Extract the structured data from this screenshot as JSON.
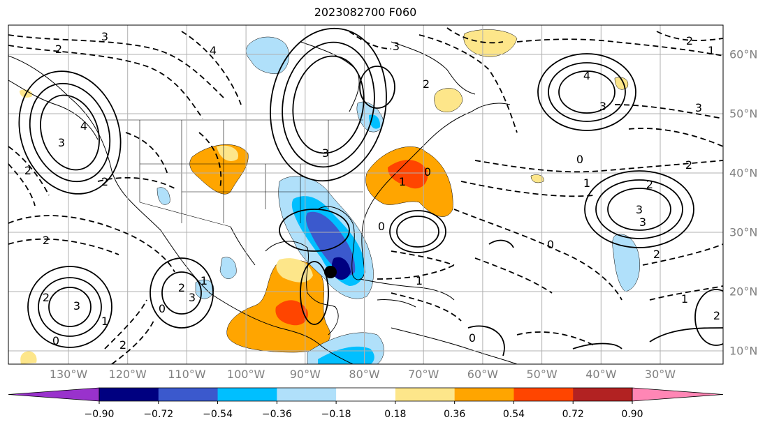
{
  "title": "2023082700 F060",
  "lon_labels": [
    "130°W",
    "120°W",
    "110°W",
    "100°W",
    "90°W",
    "80°W",
    "70°W",
    "60°W",
    "50°W",
    "40°W",
    "30°W"
  ],
  "lat_labels": [
    "60°N",
    "50°N",
    "40°N",
    "30°N",
    "20°N",
    "10°N"
  ],
  "colorbar": {
    "ticks": [
      "−0.90",
      "−0.72",
      "−0.54",
      "−0.36",
      "−0.18",
      "0.18",
      "0.36",
      "0.54",
      "0.72",
      "0.90"
    ],
    "colors": [
      "#9932cc",
      "#000080",
      "#3b59cd",
      "#00bfff",
      "#b0e0fa",
      "#ffffff",
      "#fde68a",
      "#ffa500",
      "#ff4500",
      "#b22222",
      "#ff86b5"
    ]
  },
  "colors": {
    "land_line": "#000000",
    "grid": "#b0b0b0",
    "axis_label": "#808080"
  },
  "contour_labels": [
    "3",
    "2",
    "4",
    "3",
    "2",
    "1",
    "3",
    "4",
    "3",
    "2",
    "3",
    "4",
    "3",
    "1",
    "0",
    "2",
    "2",
    "3",
    "3",
    "2",
    "1",
    "2",
    "3",
    "2",
    "1",
    "0",
    "1",
    "2",
    "3",
    "0",
    "2",
    "0",
    "0",
    "1",
    "2",
    "1",
    "0",
    "2",
    "0",
    "2"
  ]
}
